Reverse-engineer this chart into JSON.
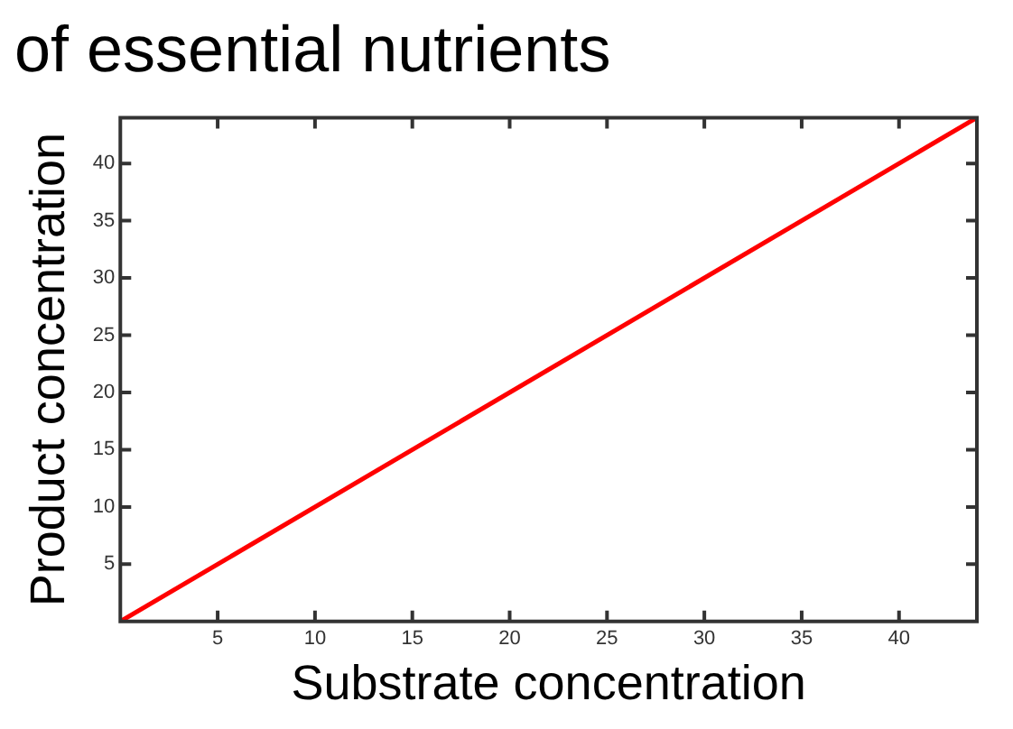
{
  "chart_data": {
    "type": "line",
    "title": "of essential nutrients",
    "xlabel": "Substrate concentration",
    "ylabel": "Product concentration",
    "x": [
      0,
      44
    ],
    "series": [
      {
        "color": "#ff0000",
        "values": [
          0,
          44
        ]
      }
    ],
    "xlim": [
      0,
      44
    ],
    "ylim": [
      0,
      44
    ],
    "xticks": [
      5,
      10,
      15,
      20,
      25,
      30,
      35,
      40
    ],
    "yticks": [
      5,
      10,
      15,
      20,
      25,
      30,
      35,
      40
    ],
    "grid": false,
    "legend": false,
    "marker": "none",
    "line_style": "solid"
  }
}
